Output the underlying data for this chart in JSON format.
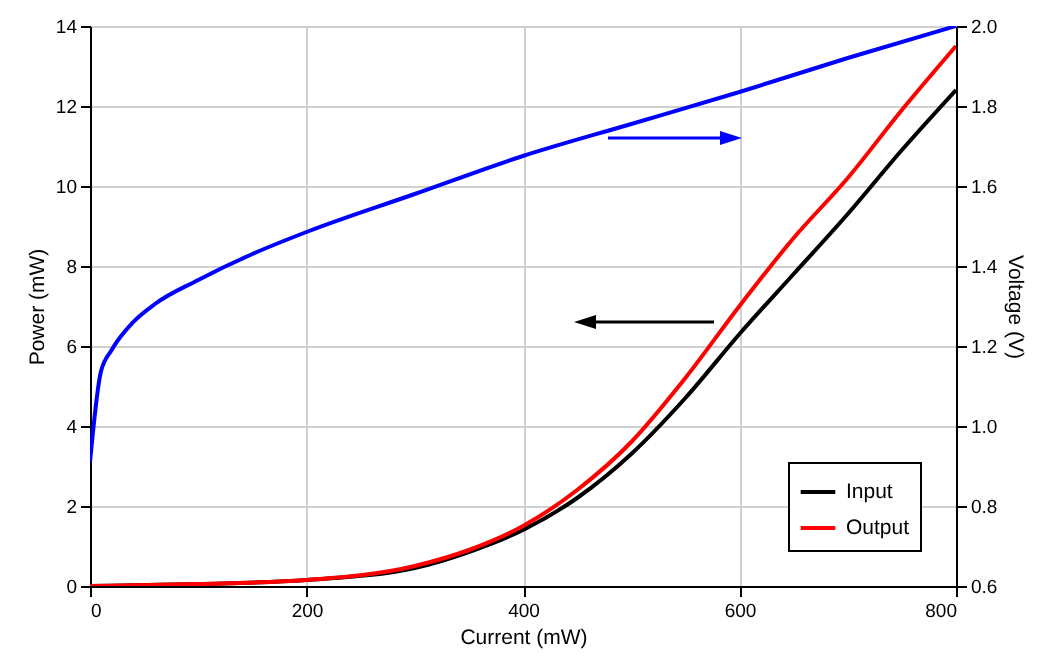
{
  "chart_data": {
    "type": "line",
    "xlabel": "Current (mW)",
    "ylabel": "Power (mW)",
    "y2label": "Voltage (V)",
    "xlim": [
      0,
      800
    ],
    "xticks": [
      0,
      200,
      400,
      600,
      800
    ],
    "ylim": [
      0,
      14
    ],
    "yticks": [
      0,
      2,
      4,
      6,
      8,
      10,
      12,
      14
    ],
    "y2lim": [
      0.6,
      2.0
    ],
    "y2ticks": [
      0.6,
      0.8,
      {
        "value": 1.0,
        "label": "1.0"
      },
      1.2,
      1.4,
      1.6,
      1.8,
      {
        "value": 2.0,
        "label": "2.0"
      }
    ],
    "grid": true,
    "legend": "bottom right",
    "line_style": "solid",
    "series": [
      {
        "name": "Input",
        "color": "#000000",
        "x": [
          0,
          100,
          200,
          300,
          350,
          400,
          450,
          500,
          550,
          600,
          650,
          700,
          750,
          800
        ],
        "values": [
          0,
          0.05,
          0.15,
          0.45,
          0.85,
          1.4,
          2.2,
          3.3,
          4.7,
          6.3,
          7.8,
          9.3,
          10.9,
          12.4
        ]
      },
      {
        "name": "Output",
        "color": "#ff0000",
        "x": [
          0,
          100,
          200,
          300,
          350,
          400,
          450,
          500,
          550,
          600,
          650,
          700,
          750,
          800
        ],
        "values": [
          0,
          0.05,
          0.15,
          0.5,
          0.9,
          1.5,
          2.4,
          3.6,
          5.2,
          7.0,
          8.7,
          10.2,
          11.9,
          13.5
        ]
      },
      {
        "color": "#0000ff",
        "axis": "y2",
        "x": [
          0,
          10,
          20,
          40,
          60,
          100,
          150,
          200,
          300,
          400,
          500,
          600,
          700,
          800
        ],
        "values": [
          0.91,
          1.135,
          1.19,
          1.26,
          1.305,
          1.365,
          1.43,
          1.485,
          1.58,
          1.675,
          1.755,
          1.835,
          1.92,
          2.0
        ]
      }
    ]
  }
}
